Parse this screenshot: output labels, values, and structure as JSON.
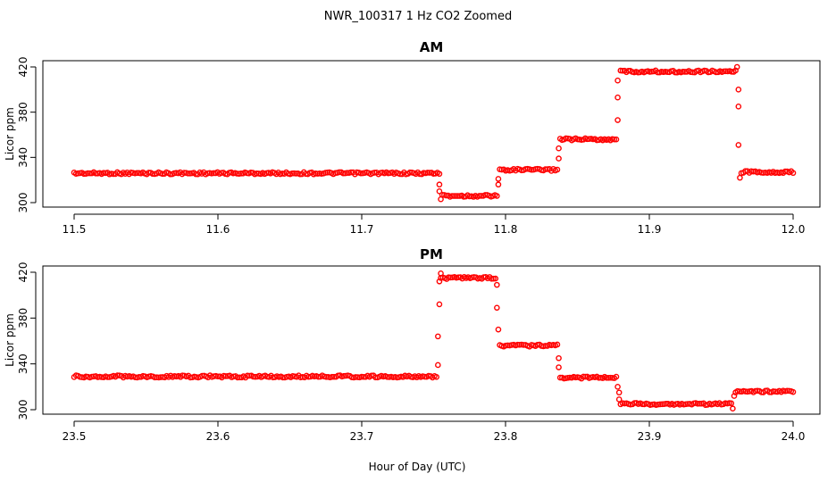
{
  "title": "NWR_100317  1 Hz CO2 Zoomed",
  "xlabel": "Hour of Day (UTC)",
  "colors": {
    "points": "#ff0000"
  },
  "chart_data": [
    {
      "type": "scatter",
      "title": "AM",
      "xlabel": "",
      "ylabel": "Licor ppm",
      "xlim": [
        11.5,
        12.0
      ],
      "ylim": [
        300,
        420
      ],
      "xticks": [
        11.5,
        11.6,
        11.7,
        11.8,
        11.9,
        12.0
      ],
      "xtick_labels": [
        "11.5",
        "11.6",
        "11.7",
        "11.8",
        "11.9",
        "12.0"
      ],
      "yticks": [
        300,
        340,
        380,
        420
      ],
      "ytick_labels": [
        "300",
        "340",
        "380",
        "420"
      ],
      "levels": [
        {
          "x_start": 11.5,
          "x_end": 11.754,
          "y": 326
        },
        {
          "x_start": 11.756,
          "x_end": 11.794,
          "y": 306
        },
        {
          "x_start": 11.796,
          "x_end": 11.836,
          "y": 329
        },
        {
          "x_start": 11.838,
          "x_end": 11.877,
          "y": 356
        },
        {
          "x_start": 11.88,
          "x_end": 11.96,
          "y": 416
        },
        {
          "x_start": 11.964,
          "x_end": 12.0,
          "y": 327
        }
      ],
      "transitions": [
        {
          "x": 11.754,
          "y": 316
        },
        {
          "x": 11.754,
          "y": 310
        },
        {
          "x": 11.755,
          "y": 303
        },
        {
          "x": 11.795,
          "y": 316
        },
        {
          "x": 11.795,
          "y": 321
        },
        {
          "x": 11.837,
          "y": 339
        },
        {
          "x": 11.837,
          "y": 348
        },
        {
          "x": 11.878,
          "y": 373
        },
        {
          "x": 11.878,
          "y": 393
        },
        {
          "x": 11.878,
          "y": 408
        },
        {
          "x": 11.961,
          "y": 420
        },
        {
          "x": 11.962,
          "y": 400
        },
        {
          "x": 11.962,
          "y": 385
        },
        {
          "x": 11.962,
          "y": 351
        },
        {
          "x": 11.963,
          "y": 322
        }
      ]
    },
    {
      "type": "scatter",
      "title": "PM",
      "xlabel": "",
      "ylabel": "Licor ppm",
      "xlim": [
        23.5,
        24.0
      ],
      "ylim": [
        300,
        420
      ],
      "xticks": [
        23.5,
        23.6,
        23.7,
        23.8,
        23.9,
        24.0
      ],
      "xtick_labels": [
        "23.5",
        "23.6",
        "23.7",
        "23.8",
        "23.9",
        "24.0"
      ],
      "yticks": [
        300,
        340,
        380,
        420
      ],
      "ytick_labels": [
        "300",
        "340",
        "380",
        "420"
      ],
      "levels": [
        {
          "x_start": 23.5,
          "x_end": 23.752,
          "y": 329
        },
        {
          "x_start": 23.755,
          "x_end": 23.793,
          "y": 415
        },
        {
          "x_start": 23.796,
          "x_end": 23.836,
          "y": 356
        },
        {
          "x_start": 23.838,
          "x_end": 23.877,
          "y": 328
        },
        {
          "x_start": 23.88,
          "x_end": 23.957,
          "y": 305
        },
        {
          "x_start": 23.96,
          "x_end": 24.0,
          "y": 316
        }
      ],
      "transitions": [
        {
          "x": 23.753,
          "y": 339
        },
        {
          "x": 23.753,
          "y": 364
        },
        {
          "x": 23.754,
          "y": 392
        },
        {
          "x": 23.754,
          "y": 412
        },
        {
          "x": 23.755,
          "y": 419
        },
        {
          "x": 23.794,
          "y": 409
        },
        {
          "x": 23.794,
          "y": 389
        },
        {
          "x": 23.795,
          "y": 370
        },
        {
          "x": 23.837,
          "y": 345
        },
        {
          "x": 23.837,
          "y": 337
        },
        {
          "x": 23.878,
          "y": 320
        },
        {
          "x": 23.879,
          "y": 315
        },
        {
          "x": 23.879,
          "y": 309
        },
        {
          "x": 23.958,
          "y": 301
        },
        {
          "x": 23.959,
          "y": 312
        }
      ]
    }
  ]
}
